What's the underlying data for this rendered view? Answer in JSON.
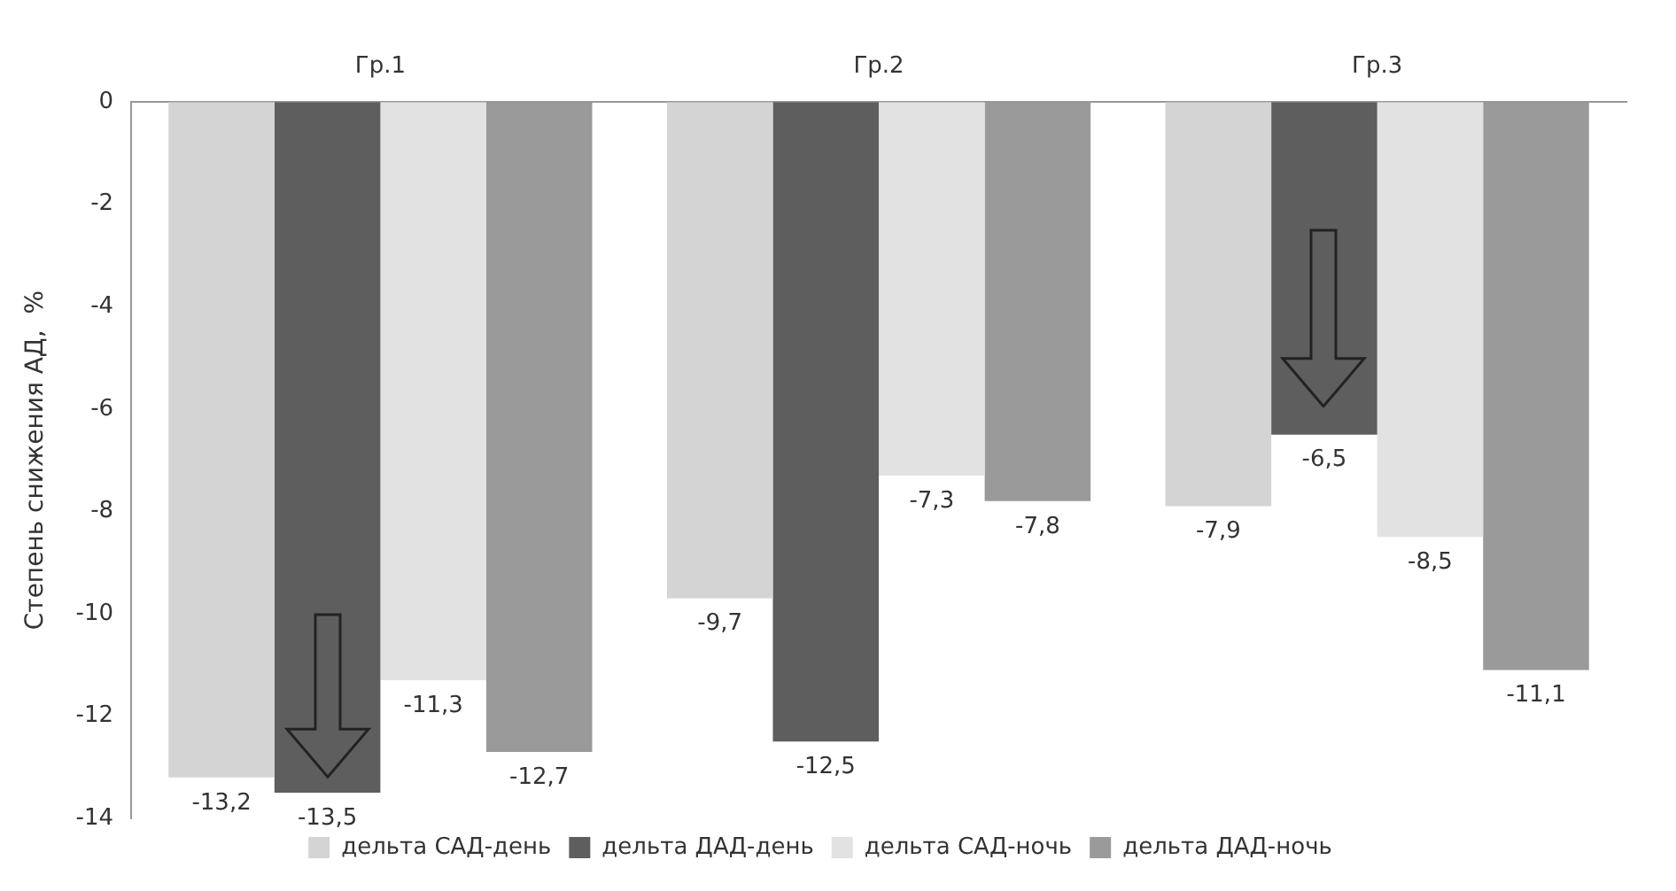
{
  "chart_data": {
    "type": "bar",
    "categories": [
      "Гр.1",
      "Гр.2",
      "Гр.3"
    ],
    "ylabel": "Степень снижения АД,  %",
    "ylim": [
      -14,
      0
    ],
    "yticks": [
      -14,
      -12,
      -10,
      -8,
      -6,
      -4,
      -2,
      0
    ],
    "grid": false,
    "legend": "bottom",
    "series": [
      {
        "name": "дельта САД-день",
        "color": "#d4d4d4",
        "values": [
          -13.2,
          -9.7,
          -7.9
        ],
        "value_labels": [
          "-13,2",
          "-9,7",
          "-7,9"
        ]
      },
      {
        "name": "дельта ДАД-день",
        "color": "#5e5e5e",
        "values": [
          -13.5,
          -12.5,
          -6.5
        ],
        "value_labels": [
          "-13,5",
          "-12,5",
          "-6,5"
        ]
      },
      {
        "name": "дельта САД-ночь",
        "color": "#e2e2e2",
        "values": [
          -11.3,
          -7.3,
          -8.5
        ],
        "value_labels": [
          "-11,3",
          "-7,3",
          "-8,5"
        ]
      },
      {
        "name": "дельта ДАД-ночь",
        "color": "#9a9a9a",
        "values": [
          -12.7,
          -7.8,
          -11.1
        ],
        "value_labels": [
          "-12,7",
          "-7,8",
          "-11,1"
        ]
      }
    ]
  }
}
